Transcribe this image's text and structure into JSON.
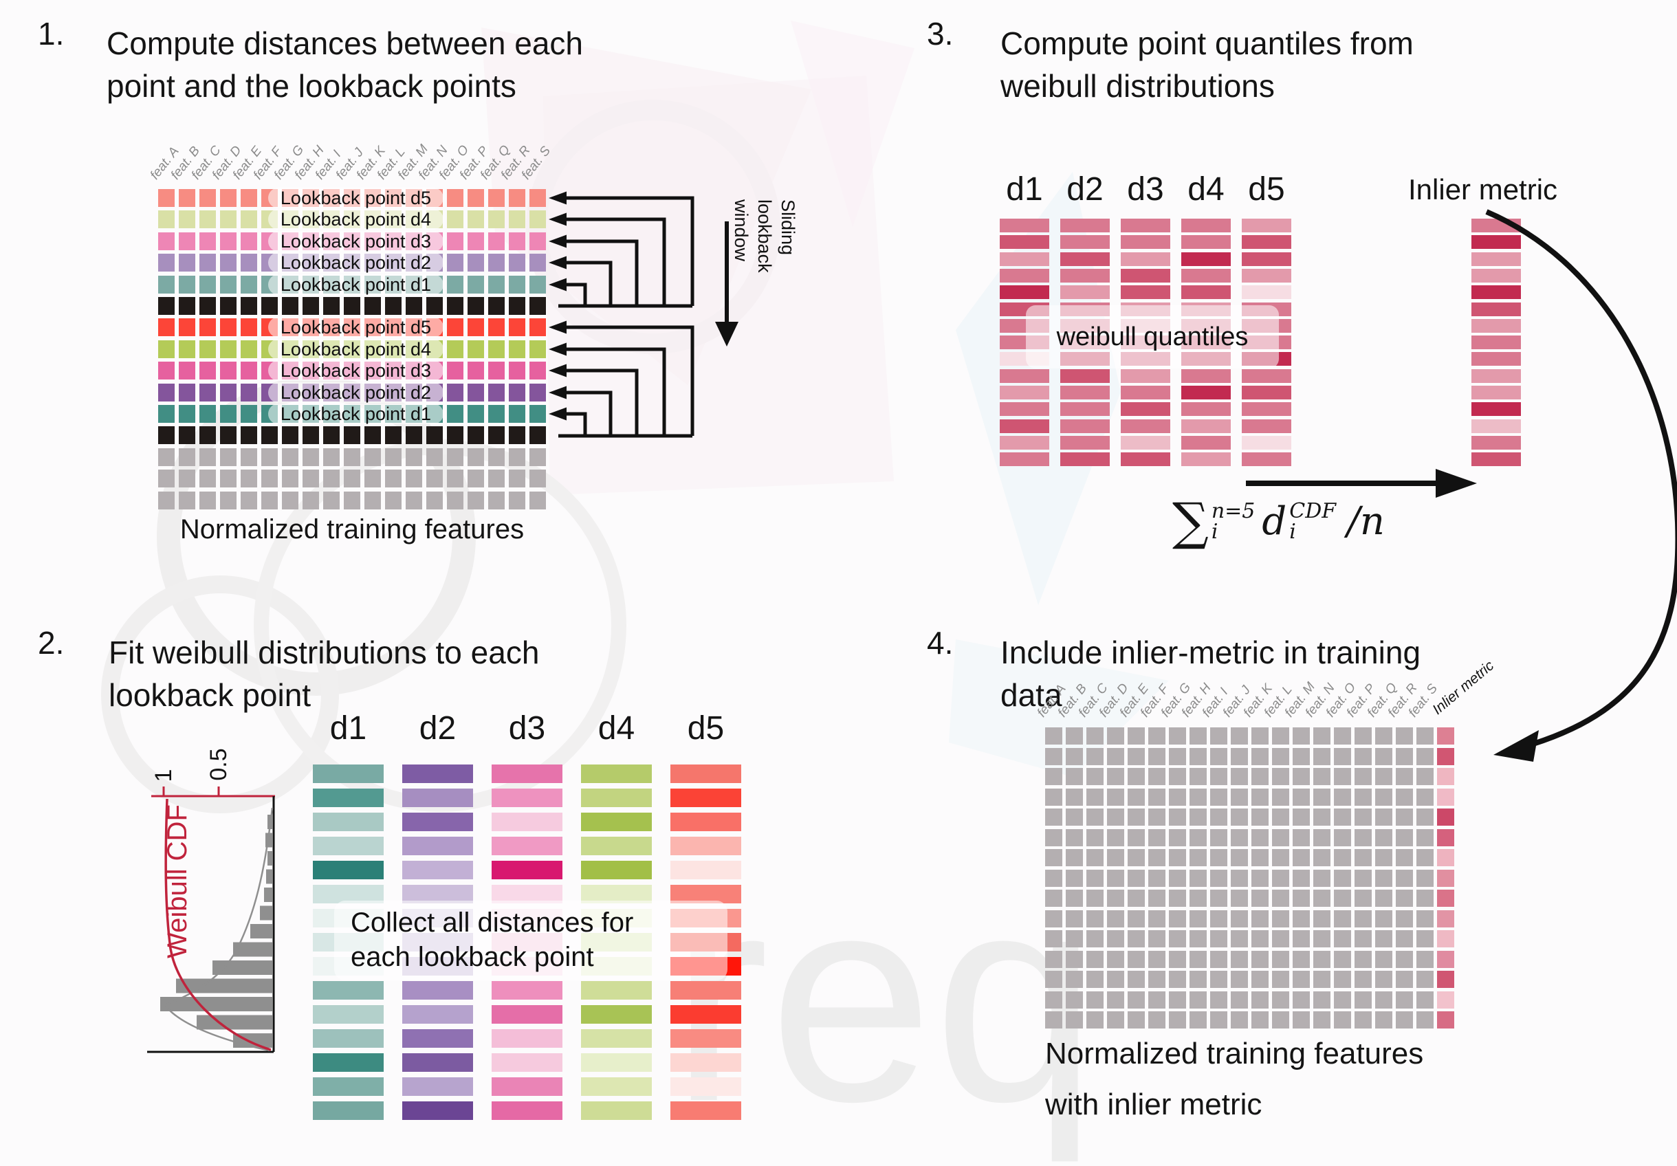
{
  "colors": {
    "black_cell": "#201a18",
    "gray_cell": "#b4afb1",
    "accent_red": "#c0233c",
    "pill_bg": "rgba(255,255,255,0.55)"
  },
  "features": [
    "feat. A",
    "feat. B",
    "feat. C",
    "feat. D",
    "feat. E",
    "feat. F",
    "feat. G",
    "feat. H",
    "feat. I",
    "feat. J",
    "feat. K",
    "feat. L",
    "feat. M",
    "feat. N",
    "feat. O",
    "feat. P",
    "feat. Q",
    "feat. R",
    "feat. S"
  ],
  "panel1": {
    "number": "1.",
    "title": [
      "Compute distances between each",
      "point and the lookback points"
    ],
    "rows": [
      {
        "color": "#f78c82",
        "label": "Lookback point d5"
      },
      {
        "color": "#d9e0a6",
        "label": "Lookback point d4"
      },
      {
        "color": "#ee86b5",
        "label": "Lookback point d3"
      },
      {
        "color": "#a78fbe",
        "label": "Lookback point d2"
      },
      {
        "color": "#7caaa4",
        "label": "Lookback point d1"
      },
      {
        "color": "#201a18"
      },
      {
        "color": "#fc4538",
        "label": "Lookback point d5"
      },
      {
        "color": "#b4cb58",
        "label": "Lookback point d4"
      },
      {
        "color": "#e6619f",
        "label": "Lookback point d3"
      },
      {
        "color": "#84559c",
        "label": "Lookback point d2"
      },
      {
        "color": "#418e84",
        "label": "Lookback point d1"
      },
      {
        "color": "#201a18"
      },
      {
        "color": "#b4afb1"
      },
      {
        "color": "#b4afb1"
      },
      {
        "color": "#b4afb1"
      }
    ],
    "sliding_label": [
      "Sliding",
      "lookback",
      "window"
    ],
    "caption": "Normalized training features"
  },
  "panel2": {
    "number": "2.",
    "title": [
      "Fit weibull distributions to each",
      "lookback point"
    ],
    "cdf": {
      "label": "Weibull CDF",
      "tick_1": "1",
      "tick_05": "0.5"
    },
    "hist_lengths": [
      7,
      10,
      7,
      9,
      12,
      18,
      32,
      57,
      87,
      140,
      163,
      110,
      57
    ],
    "dist_labels": [
      "d1",
      "d2",
      "d3",
      "d4",
      "d5"
    ],
    "columns": {
      "d1": [
        "#79aaa4",
        "#539a91",
        "#a9c9c4",
        "#bad4d0",
        "#2b8077",
        "#cfe2df",
        "#e8f1ef",
        "#d8e7e5",
        "#eef4f3",
        "#8db7b1",
        "#b3d0cb",
        "#9dc1bc",
        "#3d8b81",
        "#7fafa8",
        "#76a8a1"
      ],
      "d2": [
        "#7e5ca4",
        "#a68ec1",
        "#8765ab",
        "#b29bca",
        "#c2b0d5",
        "#ccbedb",
        "#ded4e9",
        "#d5cae3",
        "#cec0dd",
        "#a88fc3",
        "#b5a2cd",
        "#8f71b2",
        "#7c5ba1",
        "#b7a4ce",
        "#6b4594"
      ],
      "d3": [
        "#e673ab",
        "#ee92bf",
        "#f6cbdf",
        "#f09ac4",
        "#d8186f",
        "#f9d9e8",
        "#fbe4ef",
        "#f7d0e2",
        "#fbe1ed",
        "#ee8fbd",
        "#e56ea8",
        "#f4bed8",
        "#f6cade",
        "#ea84b6",
        "#e569a5"
      ],
      "d4": [
        "#b5cb6a",
        "#c2d480",
        "#a5c14e",
        "#c8d98d",
        "#a2bf47",
        "#e4edc6",
        "#eff4dc",
        "#e1ebbe",
        "#ecf2d6",
        "#cfdd98",
        "#a8c355",
        "#d6e2a6",
        "#e7efcb",
        "#dde7b2",
        "#cedc96"
      ],
      "d5": [
        "#f5766c",
        "#fb4336",
        "#f97067",
        "#fbb5af",
        "#fde4e2",
        "#f88178",
        "#fa978f",
        "#f46a60",
        "#ff160a",
        "#f77f76",
        "#fb3c30",
        "#f98b82",
        "#fdd6d2",
        "#fde9e7",
        "#f87c72"
      ]
    },
    "overlay": [
      "Collect all distances for",
      "each lookback point"
    ]
  },
  "panel3": {
    "number": "3.",
    "title": [
      "Compute point quantiles from",
      "weibull distributions"
    ],
    "dist_labels": [
      "d1",
      "d2",
      "d3",
      "d4",
      "d5"
    ],
    "overlay": "weibull quantiles",
    "inlier_label": "Inlier metric",
    "columns": {
      "d1": [
        "#d97990",
        "#cf5572",
        "#e39aab",
        "#d97990",
        "#c22a50",
        "#cf5572",
        "#d97990",
        "#d97990",
        "#f6dde3",
        "#d97990",
        "#e39aab",
        "#d97990",
        "#cf5572",
        "#e39aab",
        "#d97990"
      ],
      "d2": [
        "#d97990",
        "#d97990",
        "#cf5572",
        "#d97990",
        "#e39aab",
        "#d97990",
        "#e39aab",
        "#e39aab",
        "#cf5572",
        "#cf5572",
        "#d97990",
        "#d97990",
        "#d97990",
        "#d97990",
        "#cf5572"
      ],
      "d3": [
        "#d97990",
        "#d97990",
        "#e39aab",
        "#cf5572",
        "#cf5572",
        "#e39aab",
        "#edbcc7",
        "#e39aab",
        "#d97990",
        "#e39aab",
        "#d97990",
        "#cf5572",
        "#d97990",
        "#edbcc7",
        "#cf5572"
      ],
      "d4": [
        "#d97990",
        "#d97990",
        "#c22a50",
        "#d97990",
        "#cf5572",
        "#e39aab",
        "#e39aab",
        "#d97990",
        "#cf5572",
        "#d97990",
        "#c22a50",
        "#d97990",
        "#e39aab",
        "#d97990",
        "#e39aab"
      ],
      "d5": [
        "#e39aab",
        "#cf5572",
        "#cf5572",
        "#e39aab",
        "#f6dde3",
        "#d97990",
        "#d97990",
        "#d97990",
        "#c22a50",
        "#d97990",
        "#cf5572",
        "#d97990",
        "#d97990",
        "#f6dde3",
        "#d97990"
      ]
    },
    "inlier_column": [
      "#d97990",
      "#c22a50",
      "#e39aab",
      "#e39aab",
      "#c22a50",
      "#cf5572",
      "#e39aab",
      "#d97990",
      "#d97990",
      "#e39aab",
      "#e39aab",
      "#c22a50",
      "#edbcc7",
      "#d97990",
      "#cf5572"
    ],
    "formula": {
      "sum": "∑",
      "sum_sup": "n=5",
      "sum_sub": "i",
      "var": "d",
      "var_sup": "CDF",
      "var_sub": "i",
      "tail": "/n"
    }
  },
  "panel4": {
    "number": "4.",
    "title": [
      "Include inlier-metric in training",
      "data"
    ],
    "inlier_header": "Inlier metric",
    "grid": {
      "rows": 15,
      "feature_cols": 19
    },
    "inlier_column": [
      "#dd8093",
      "#d15672",
      "#efb6c1",
      "#f0bac6",
      "#cc4868",
      "#d5617d",
      "#eeb3bf",
      "#e18fa0",
      "#da7389",
      "#e294a5",
      "#efb9c4",
      "#e08ba0",
      "#d05672",
      "#f2c2cc",
      "#d76c84"
    ],
    "caption": [
      "Normalized training features",
      "with inlier metric"
    ]
  },
  "watermark": {
    "text": "req"
  }
}
